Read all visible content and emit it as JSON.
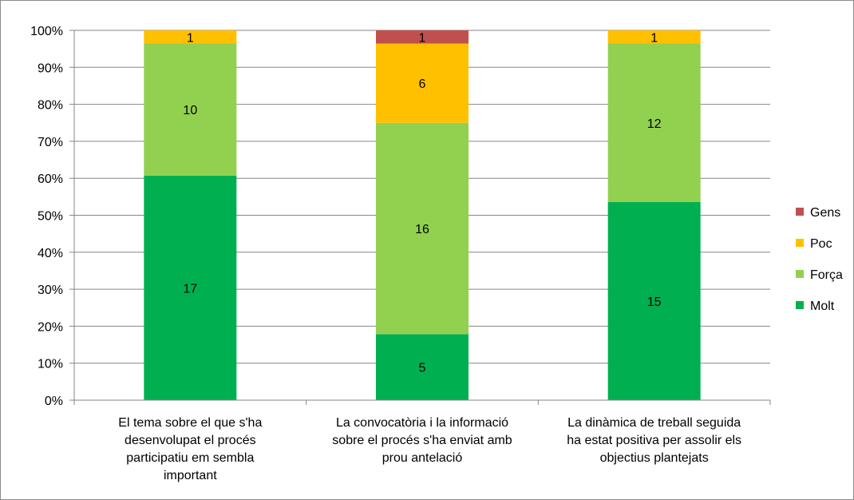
{
  "chart_data": {
    "type": "bar",
    "stacked": true,
    "percent_stacked": true,
    "categories": [
      "El tema sobre el que s'ha desenvolupat el procés participatiu em sembla important",
      "La convocatòria i la informació sobre el procés s'ha enviat amb prou antelació",
      "La dinàmica de treball seguida ha estat positiva per assolir els objectius plantejats"
    ],
    "category_lines": [
      [
        "El tema sobre el que s'ha",
        "desenvolupat el procés",
        "participatiu em sembla",
        "important"
      ],
      [
        "La convocatòria i la informació",
        "sobre el procés s'ha enviat amb",
        "prou antelació"
      ],
      [
        "La dinàmica de treball seguida",
        "ha estat positiva per assolir els",
        "objectius plantejats"
      ]
    ],
    "series": [
      {
        "name": "Molt",
        "color": "#00b050",
        "values": [
          17,
          5,
          15
        ]
      },
      {
        "name": "Força",
        "color": "#92d050",
        "values": [
          10,
          16,
          12
        ]
      },
      {
        "name": "Poc",
        "color": "#ffc000",
        "values": [
          1,
          6,
          1
        ]
      },
      {
        "name": "Gens",
        "color": "#c0504d",
        "values": [
          0,
          1,
          0
        ]
      }
    ],
    "y_ticks": [
      "0%",
      "10%",
      "20%",
      "30%",
      "40%",
      "50%",
      "60%",
      "70%",
      "80%",
      "90%",
      "100%"
    ],
    "ylim": [
      0,
      100
    ],
    "grid": true,
    "legend_position": "right",
    "legend_order": [
      "Gens",
      "Poc",
      "Força",
      "Molt"
    ],
    "gridline_color": "#868686",
    "axis_color": "#868686"
  }
}
